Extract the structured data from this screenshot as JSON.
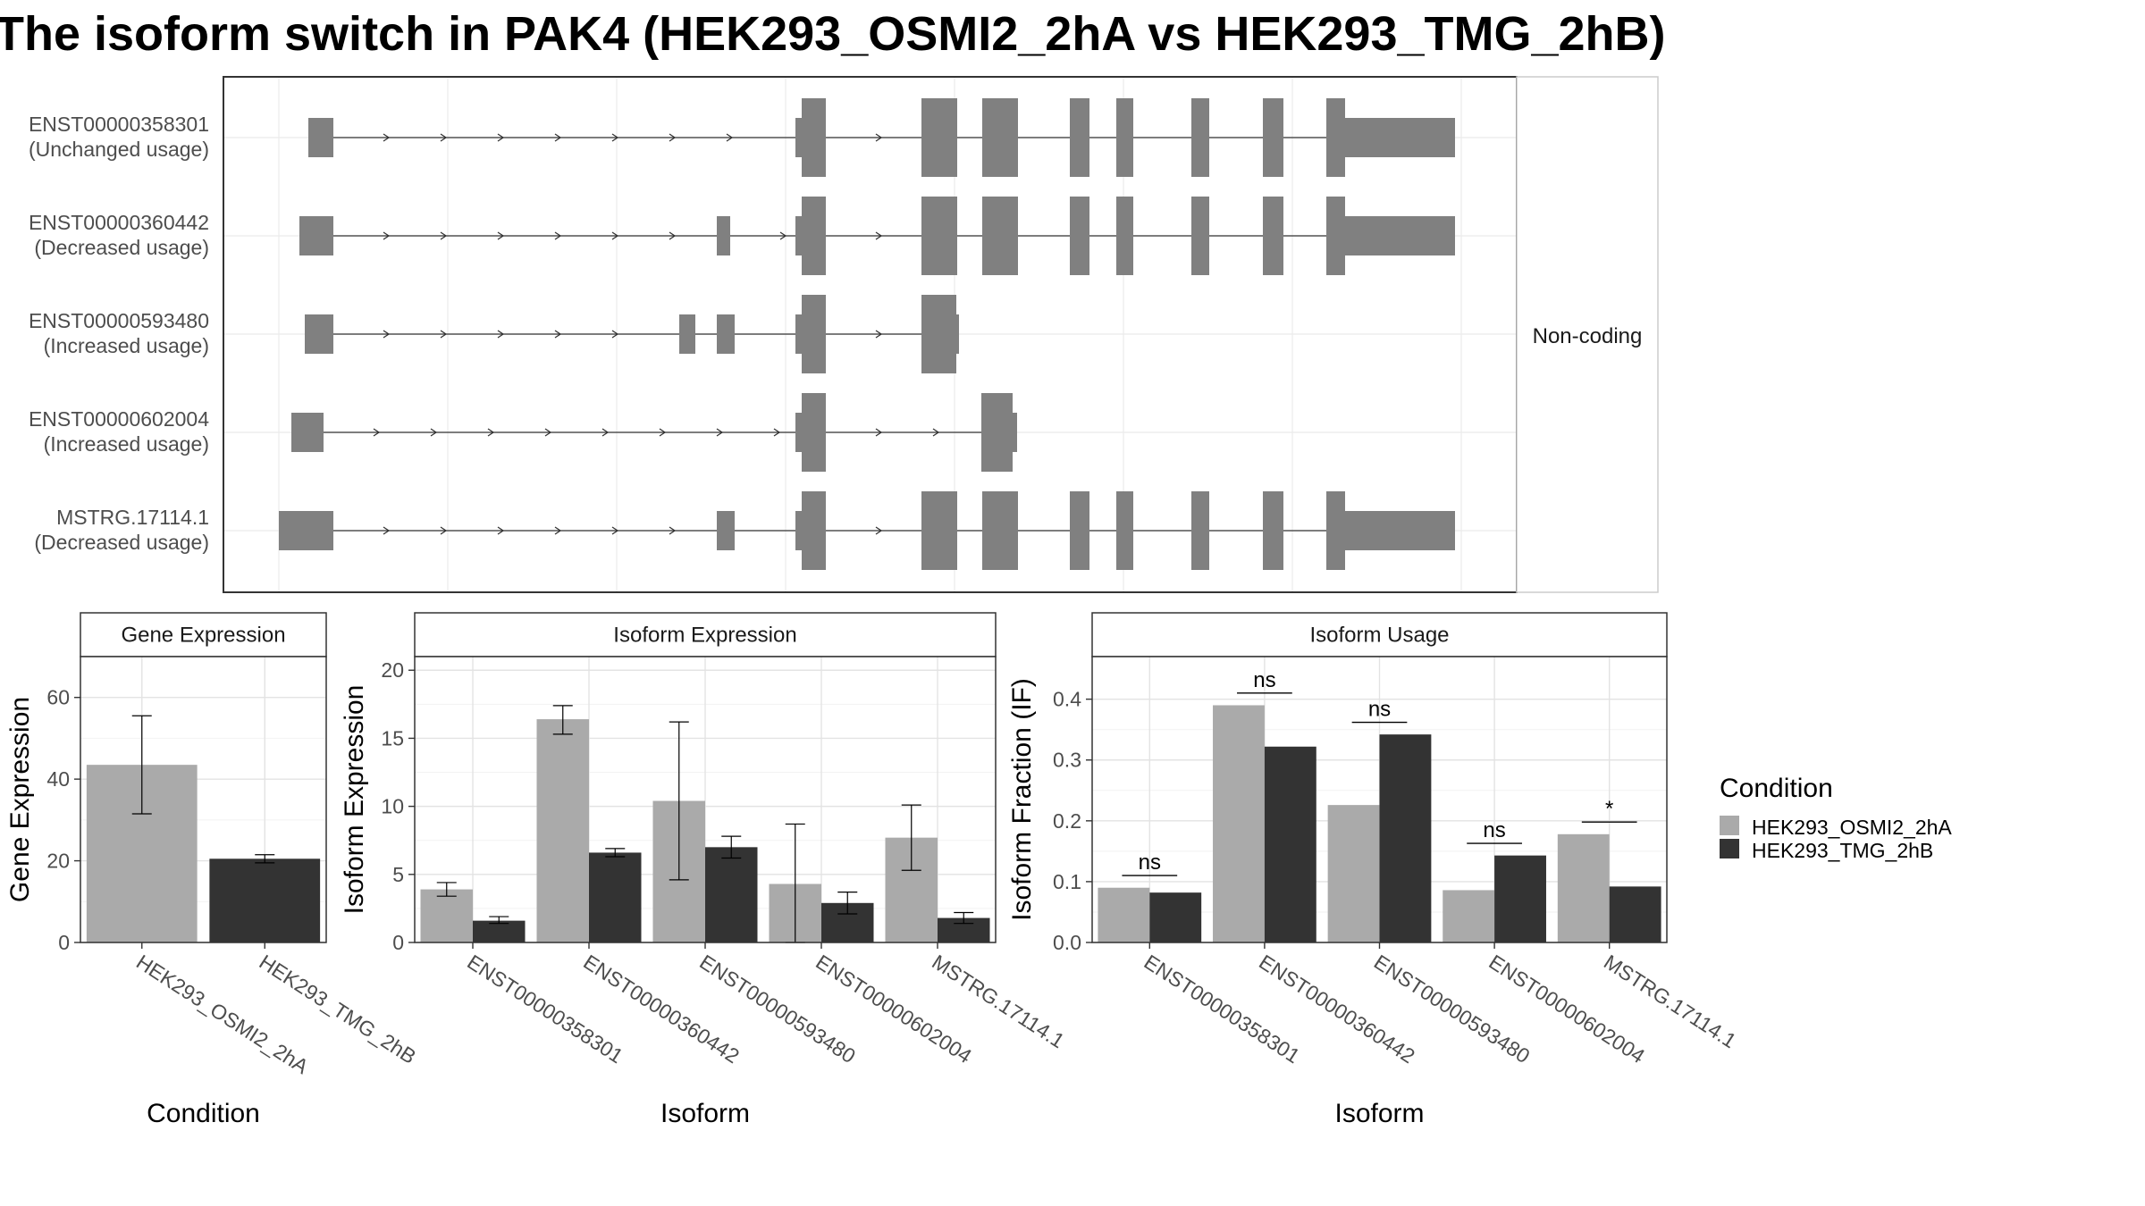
{
  "title": "The isoform switch in PAK4 (HEK293_OSMI2_2hA vs HEK293_TMG_2hB)",
  "colors": {
    "cond_a": "#aaaaaa",
    "cond_b": "#333333",
    "transcript": "#808080"
  },
  "chart_data": [
    {
      "id": "transcript-structure",
      "type": "diagram",
      "side_label": "Non-coding",
      "isoforms": [
        {
          "name": "ENST00000358301",
          "usage": "(Unchanged usage)"
        },
        {
          "name": "ENST00000360442",
          "usage": "(Decreased usage)"
        },
        {
          "name": "ENST00000593480",
          "usage": "(Increased usage)"
        },
        {
          "name": "ENST00000602004",
          "usage": "(Increased usage)"
        },
        {
          "name": "MSTRG.17114.1",
          "usage": "(Decreased usage)"
        }
      ]
    },
    {
      "id": "gene-expression",
      "type": "bar",
      "title": "Gene Expression",
      "xlabel": "Condition",
      "ylabel": "Gene Expression",
      "ylim": [
        0,
        70
      ],
      "yticks": [
        0,
        20,
        40,
        60
      ],
      "categories": [
        "HEK293_OSMI2_2hA",
        "HEK293_TMG_2hB"
      ],
      "values": [
        43.5,
        20.5
      ],
      "error_low": [
        31.5,
        19.5
      ],
      "error_high": [
        55.5,
        21.5
      ]
    },
    {
      "id": "isoform-expression",
      "type": "bar",
      "title": "Isoform Expression",
      "xlabel": "Isoform",
      "ylabel": "Isoform Expression",
      "ylim": [
        0,
        21
      ],
      "yticks": [
        0,
        5,
        10,
        15,
        20
      ],
      "categories": [
        "ENST00000358301",
        "ENST00000360442",
        "ENST00000593480",
        "ENST00000602004",
        "MSTRG.17114.1"
      ],
      "series": [
        {
          "name": "HEK293_OSMI2_2hA",
          "values": [
            3.9,
            16.4,
            10.4,
            4.3,
            7.7
          ],
          "error_low": [
            3.4,
            15.3,
            4.6,
            0.0,
            5.3
          ],
          "error_high": [
            4.4,
            17.4,
            16.2,
            8.7,
            10.1
          ]
        },
        {
          "name": "HEK293_TMG_2hB",
          "values": [
            1.6,
            6.6,
            7.0,
            2.9,
            1.8
          ],
          "error_low": [
            1.4,
            6.3,
            6.2,
            2.1,
            1.4
          ],
          "error_high": [
            1.9,
            6.9,
            7.8,
            3.7,
            2.2
          ]
        }
      ]
    },
    {
      "id": "isoform-usage",
      "type": "bar",
      "title": "Isoform Usage",
      "xlabel": "Isoform",
      "ylabel": "Isoform Fraction (IF)",
      "ylim": [
        0,
        0.47
      ],
      "yticks": [
        0.0,
        0.1,
        0.2,
        0.3,
        0.4
      ],
      "ytick_labels": [
        "0.0",
        "0.1",
        "0.2",
        "0.3",
        "0.4"
      ],
      "categories": [
        "ENST00000358301",
        "ENST00000360442",
        "ENST00000593480",
        "ENST00000602004",
        "MSTRG.17114.1"
      ],
      "series": [
        {
          "name": "HEK293_OSMI2_2hA",
          "values": [
            0.09,
            0.39,
            0.226,
            0.086,
            0.178
          ]
        },
        {
          "name": "HEK293_TMG_2hB",
          "values": [
            0.082,
            0.322,
            0.342,
            0.143,
            0.092
          ]
        }
      ],
      "significance": [
        "ns",
        "ns",
        "ns",
        "ns",
        "*"
      ],
      "significance_y": [
        0.11,
        0.41,
        0.362,
        0.163,
        0.198
      ]
    }
  ],
  "legend": {
    "title": "Condition",
    "entries": [
      "HEK293_OSMI2_2hA",
      "HEK293_TMG_2hB"
    ],
    "placement": "right"
  }
}
